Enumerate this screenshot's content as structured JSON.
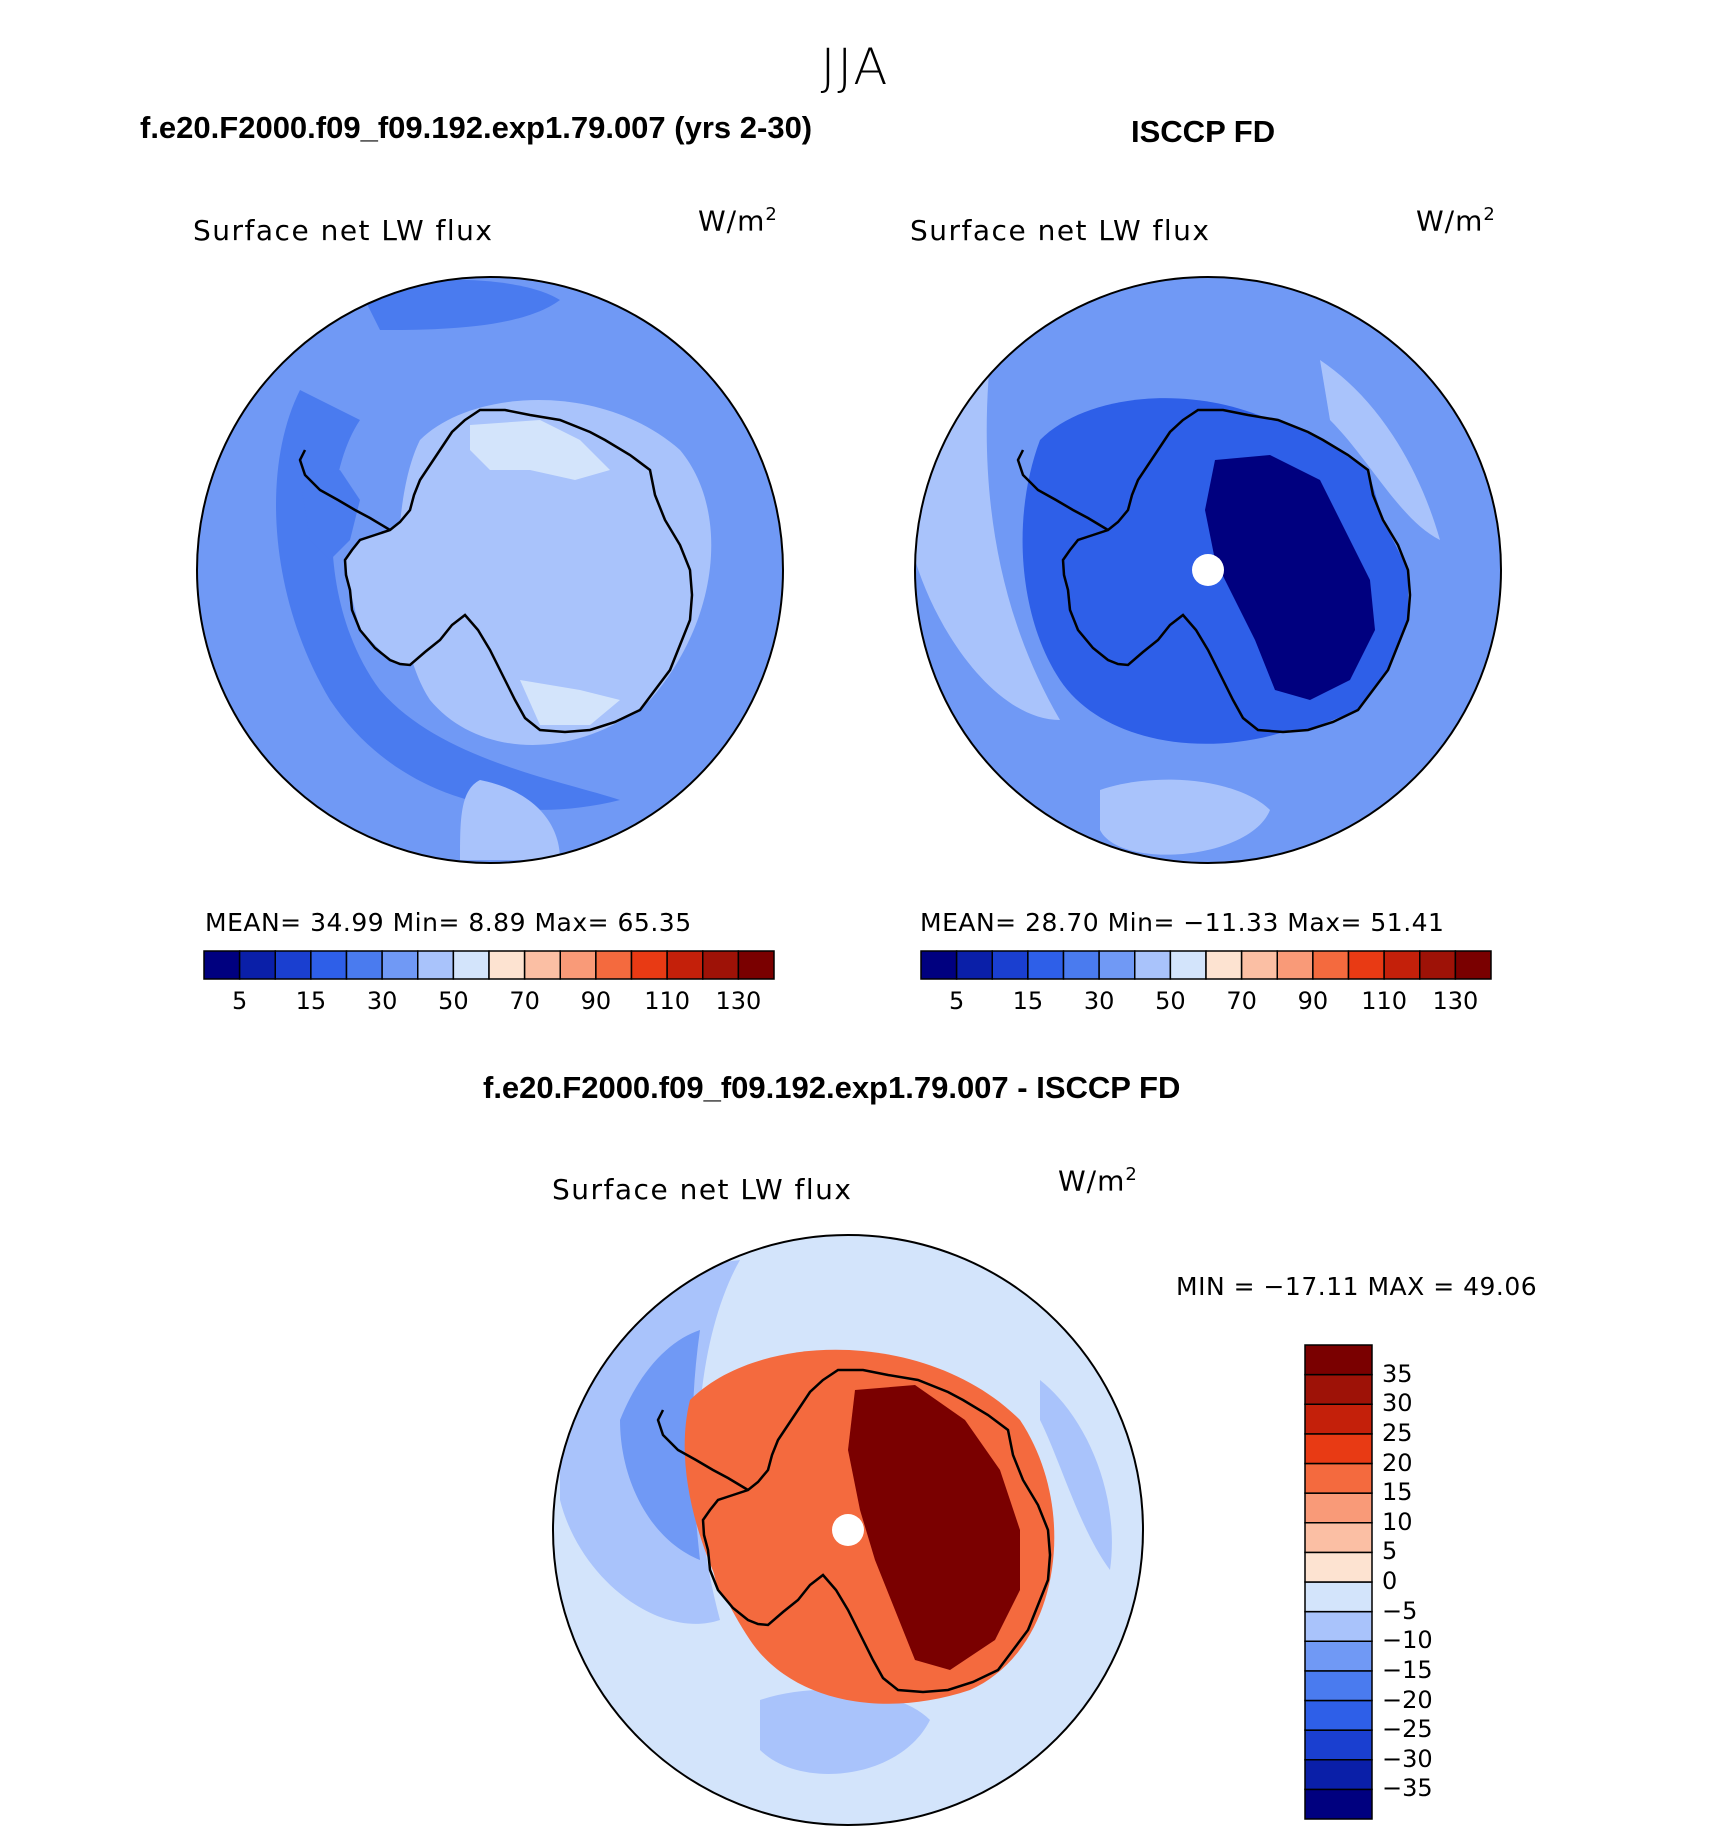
{
  "figure": {
    "title": "JJA",
    "diff_title": "f.e20.F2000.f09_f09.192.exp1.79.007 - ISCCP FD"
  },
  "panels": [
    {
      "title": "f.e20.F2000.f09_f09.192.exp1.79.007 (yrs 2-30)",
      "variable": "Surface net LW flux",
      "units_base": "W/m",
      "units_exp": "2",
      "stats": "MEAN=  34.99   Min=    8.89   Max=   65.35",
      "pole_hole": false
    },
    {
      "title": "ISCCP FD",
      "variable": "Surface net LW flux",
      "units_base": "W/m",
      "units_exp": "2",
      "stats": "MEAN=  28.70   Min= −11.33   Max=   51.41",
      "pole_hole": true
    },
    {
      "title": "",
      "variable": "Surface net LW flux",
      "units_base": "W/m",
      "units_exp": "2",
      "stats": "MIN = −17.11 MAX =   49.06",
      "pole_hole": true
    }
  ],
  "colorbar_abs": {
    "colors": [
      "#00007f",
      "#0a1fa8",
      "#1a3fd0",
      "#2e5fe8",
      "#4a7bef",
      "#7099f5",
      "#a9c3fb",
      "#d3e4fb",
      "#fde3d1",
      "#fbbfa4",
      "#f99a78",
      "#f46a3e",
      "#e83a14",
      "#c4200a",
      "#9e1207",
      "#7a0000"
    ],
    "labels": [
      "5",
      "15",
      "30",
      "50",
      "70",
      "90",
      "110",
      "130"
    ]
  },
  "colorbar_diff": {
    "colors": [
      "#00007f",
      "#0a1fa8",
      "#1a3fd0",
      "#2e5fe8",
      "#4a7bef",
      "#7099f5",
      "#a9c3fb",
      "#d3e4fb",
      "#fde3d1",
      "#fbbfa4",
      "#f99a78",
      "#f46a3e",
      "#e83a14",
      "#c4200a",
      "#9e1207",
      "#7a0000"
    ],
    "labels": [
      "35",
      "30",
      "25",
      "20",
      "15",
      "10",
      "5",
      "0",
      "−5",
      "−10",
      "−15",
      "−20",
      "−25",
      "−30",
      "−35"
    ]
  },
  "map_colors": {
    "ocean_model": "#7099f5",
    "ocean_model_dark": "#4a7bef",
    "ice_model": "#a9c3fb",
    "ice_model_light": "#d3e4fb",
    "ocean_obs": "#7099f5",
    "ocean_obs_light": "#a9c3fb",
    "ice_obs": "#2e5fe8",
    "ice_obs_deep": "#00007f",
    "diff_ocean": "#d3e4fb",
    "diff_ocean_neg": "#a9c3fb",
    "diff_ocean_neg2": "#7099f5",
    "diff_ice": "#f46a3e",
    "diff_ice_deep": "#7a0000",
    "coastline": "#000000"
  }
}
